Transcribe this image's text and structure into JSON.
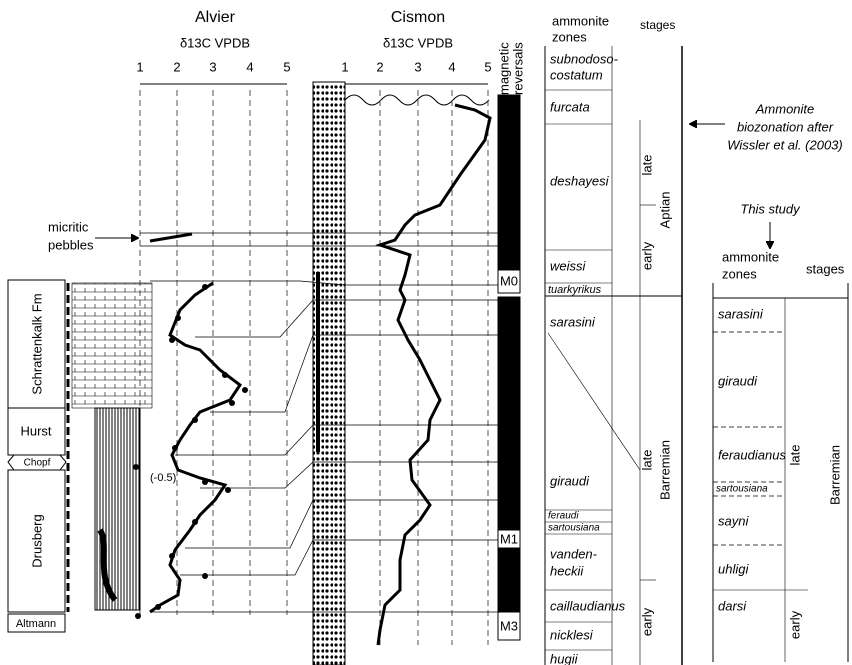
{
  "alvier": {
    "title": "Alvier",
    "axis_label": "δ13C VPDB",
    "ticks": [
      1,
      2,
      3,
      4,
      5
    ]
  },
  "cismon": {
    "title": "Cismon",
    "axis_label": "δ13C VPDB",
    "ticks": [
      1,
      2,
      3,
      4,
      5
    ]
  },
  "magnetic": {
    "label": [
      "magnetic",
      "reversals"
    ],
    "chrons": [
      "M0",
      "M1",
      "M3"
    ]
  },
  "wissler": {
    "header": {
      "zones": [
        "ammonite",
        "zones"
      ],
      "stages": "stages"
    },
    "zones": [
      [
        "subnodoso-",
        "costatum"
      ],
      "furcata",
      "deshayesi",
      "weissi",
      "tuarkyrikus",
      "sarasini",
      "giraudi",
      "feraudi",
      "sartousiana",
      [
        "vanden-",
        "heckii"
      ],
      "caillaudianus",
      "nicklesi",
      "hugii"
    ],
    "stages": [
      "late",
      "early",
      "Aptian",
      "late",
      "early",
      "Barremian"
    ],
    "note": [
      "Ammonite",
      "biozonation after",
      "Wissler et al. (2003)"
    ]
  },
  "this_study": {
    "title": "This study",
    "header": {
      "zones": [
        "ammonite",
        "zones"
      ],
      "stages": "stages"
    },
    "zones": [
      "sarasini",
      "giraudi",
      "feraudianus",
      "sartousiana",
      "sayni",
      "uhligi",
      "darsi"
    ],
    "stages": [
      "late",
      "early",
      "Barremian"
    ]
  },
  "formations": [
    "Schrattenkalk Fm",
    "Hurst",
    "Chopf",
    "Drusberg",
    "Altmann"
  ],
  "annotations": {
    "pebbles": [
      "micritic",
      "pebbles"
    ],
    "value": "(-0.5)"
  }
}
